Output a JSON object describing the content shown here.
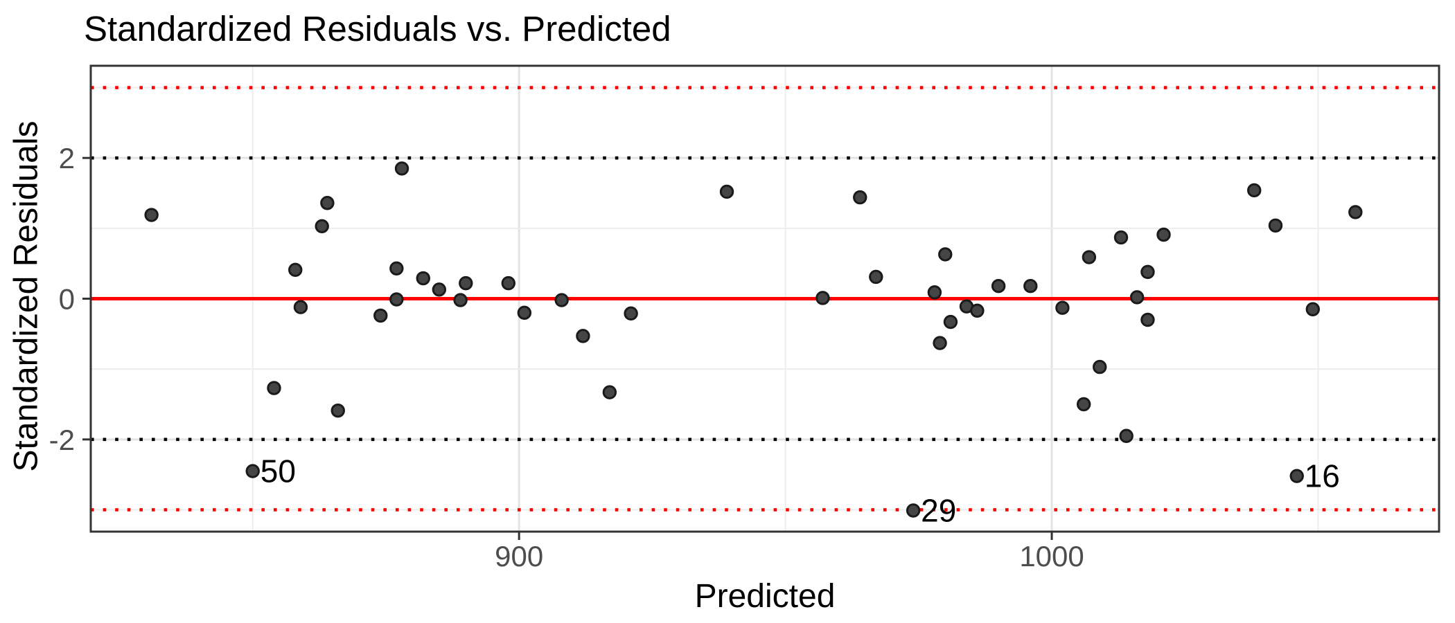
{
  "chart_data": {
    "type": "scatter",
    "title": "Standardized Residuals vs. Predicted",
    "xlabel": "Predicted",
    "ylabel": "Standardized Residuals",
    "x_domain": [
      819.6,
      1072.7
    ],
    "y_domain": [
      -3.31,
      3.31
    ],
    "x_ticks": [
      {
        "value": 900,
        "label": "900"
      },
      {
        "value": 1000,
        "label": "1000"
      }
    ],
    "x_minor": [
      850,
      950,
      1050
    ],
    "y_ticks": [
      {
        "value": 2,
        "label": "2"
      },
      {
        "value": 0,
        "label": "0"
      },
      {
        "value": -2,
        "label": "-2"
      }
    ],
    "y_minor": [
      3,
      1,
      -1,
      -3
    ],
    "grid": true,
    "legend": "none",
    "ref_lines": [
      {
        "y": 3,
        "color": "#FF0000",
        "style": "dotted",
        "name": "plus-3-sigma-line"
      },
      {
        "y": 2,
        "color": "#000000",
        "style": "dotted",
        "name": "plus-2-sigma-line"
      },
      {
        "y": 0,
        "color": "#FF0000",
        "style": "solid",
        "name": "zero-line"
      },
      {
        "y": -2,
        "color": "#000000",
        "style": "dotted",
        "name": "minus-2-sigma-line"
      },
      {
        "y": -3,
        "color": "#FF0000",
        "style": "dotted",
        "name": "minus-3-sigma-line"
      }
    ],
    "points": [
      {
        "x": 831,
        "y": 1.19
      },
      {
        "x": 850,
        "y": -2.45,
        "label": "50"
      },
      {
        "x": 854,
        "y": -1.27
      },
      {
        "x": 858,
        "y": 0.41
      },
      {
        "x": 859,
        "y": -0.12
      },
      {
        "x": 863,
        "y": 1.03
      },
      {
        "x": 864,
        "y": 1.36
      },
      {
        "x": 866,
        "y": -1.59
      },
      {
        "x": 874,
        "y": -0.24
      },
      {
        "x": 877,
        "y": 0.43
      },
      {
        "x": 877,
        "y": -0.01
      },
      {
        "x": 878,
        "y": 1.85
      },
      {
        "x": 882,
        "y": 0.29
      },
      {
        "x": 885,
        "y": 0.13
      },
      {
        "x": 889,
        "y": -0.02
      },
      {
        "x": 890,
        "y": 0.22
      },
      {
        "x": 898,
        "y": 0.22
      },
      {
        "x": 901,
        "y": -0.2
      },
      {
        "x": 908,
        "y": -0.02
      },
      {
        "x": 912,
        "y": -0.53
      },
      {
        "x": 917,
        "y": -1.33
      },
      {
        "x": 921,
        "y": -0.21
      },
      {
        "x": 939,
        "y": 1.52
      },
      {
        "x": 957,
        "y": 0.01
      },
      {
        "x": 964,
        "y": 1.44
      },
      {
        "x": 967,
        "y": 0.31
      },
      {
        "x": 974,
        "y": -3.01,
        "label": "29"
      },
      {
        "x": 978,
        "y": 0.09
      },
      {
        "x": 979,
        "y": -0.63
      },
      {
        "x": 980,
        "y": 0.63
      },
      {
        "x": 981,
        "y": -0.33
      },
      {
        "x": 984,
        "y": -0.11
      },
      {
        "x": 986,
        "y": -0.17
      },
      {
        "x": 990,
        "y": 0.18
      },
      {
        "x": 996,
        "y": 0.18
      },
      {
        "x": 1002,
        "y": -0.13
      },
      {
        "x": 1006,
        "y": -1.5
      },
      {
        "x": 1007,
        "y": 0.59
      },
      {
        "x": 1009,
        "y": -0.97
      },
      {
        "x": 1013,
        "y": 0.87
      },
      {
        "x": 1014,
        "y": -1.95
      },
      {
        "x": 1016,
        "y": 0.02
      },
      {
        "x": 1018,
        "y": 0.38
      },
      {
        "x": 1018,
        "y": -0.3
      },
      {
        "x": 1021,
        "y": 0.91
      },
      {
        "x": 1038,
        "y": 1.54
      },
      {
        "x": 1042,
        "y": 1.04
      },
      {
        "x": 1046,
        "y": -2.52,
        "label": "16"
      },
      {
        "x": 1049,
        "y": -0.15
      },
      {
        "x": 1057,
        "y": 1.23
      }
    ],
    "colors": {
      "point_fill": "#454545",
      "point_stroke": "#1a1a1a",
      "grid_major": "#e3e3e3",
      "grid_minor": "#ededed",
      "panel_border": "#333333",
      "tick_mark": "#333333",
      "tick_label": "#4d4d4d",
      "text": "#000000",
      "ref_red": "#FF0000",
      "ref_black": "#000000"
    }
  }
}
